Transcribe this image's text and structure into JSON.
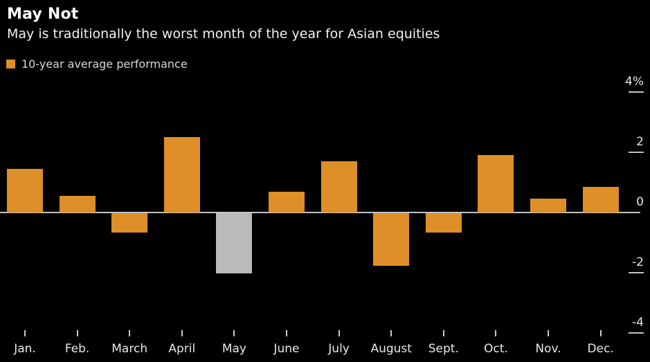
{
  "header": {
    "title": "May Not",
    "subtitle": "May is traditionally the worst month of the year for Asian equities"
  },
  "legend": {
    "label": "10-year average performance",
    "swatch_color": "#de8f27"
  },
  "chart_data": {
    "type": "bar",
    "title": "May Not",
    "subtitle": "May is traditionally the worst month of the year for Asian equities",
    "series_name": "10-year average performance",
    "categories": [
      "Jan.",
      "Feb.",
      "March",
      "April",
      "May",
      "June",
      "July",
      "August",
      "Sept.",
      "Oct.",
      "Nov.",
      "Dec."
    ],
    "values": [
      1.45,
      0.55,
      -0.65,
      2.5,
      -2.0,
      0.7,
      1.7,
      -1.75,
      -0.65,
      1.9,
      0.45,
      0.85
    ],
    "unit": "%",
    "highlight_category": "May",
    "bar_color": "#de8f27",
    "highlight_color": "#bababa",
    "y_ticks": [
      4,
      2,
      0,
      -2,
      -4
    ],
    "y_tick_labels": [
      "4%",
      "2",
      "0",
      "-2",
      "-4"
    ],
    "ylim": [
      -4.6,
      4.6
    ],
    "xlabel": "",
    "ylabel": "",
    "grid": false,
    "legend_position": "top-left",
    "background": "#000000"
  }
}
